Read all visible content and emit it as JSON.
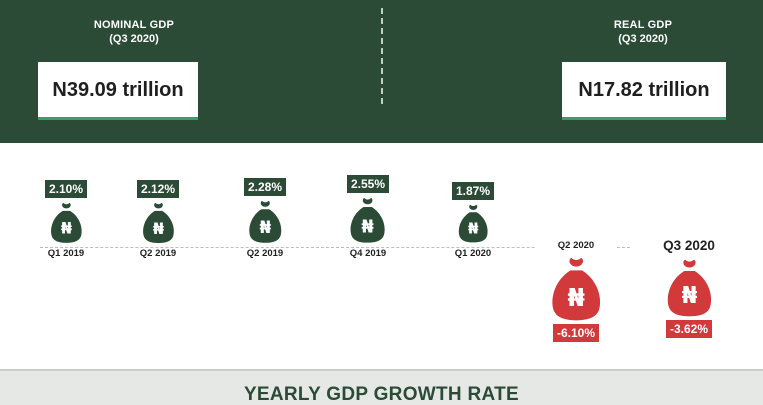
{
  "header": {
    "nominal": {
      "label": "NOMINAL GDP",
      "period": "(Q3 2020)",
      "value": "N39.09 trillion"
    },
    "real": {
      "label": "REAL GDP",
      "period": "(Q3 2020)",
      "value": "N17.82 trillion"
    }
  },
  "footer": {
    "title": "YEARLY GDP GROWTH RATE"
  },
  "icons": {
    "bag": "money-bag-naira-icon",
    "currency_symbol": "₦"
  },
  "colors": {
    "dark_green": "#2b4b37",
    "negative_red": "#d2393a",
    "accent_green": "#3f9a6d"
  },
  "chart_data": {
    "type": "pictograph",
    "categories": [
      "Q1 2019",
      "Q2 2019",
      "Q2 2019",
      "Q4 2019",
      "Q1 2020",
      "Q2 2020",
      "Q3 2020"
    ],
    "values": [
      2.1,
      2.12,
      2.28,
      2.55,
      1.87,
      -6.1,
      -3.62
    ],
    "value_labels": [
      "2.10%",
      "2.12%",
      "2.28%",
      "2.55%",
      "1.87%",
      "-6.10%",
      "-3.62%"
    ],
    "unit": "%"
  }
}
